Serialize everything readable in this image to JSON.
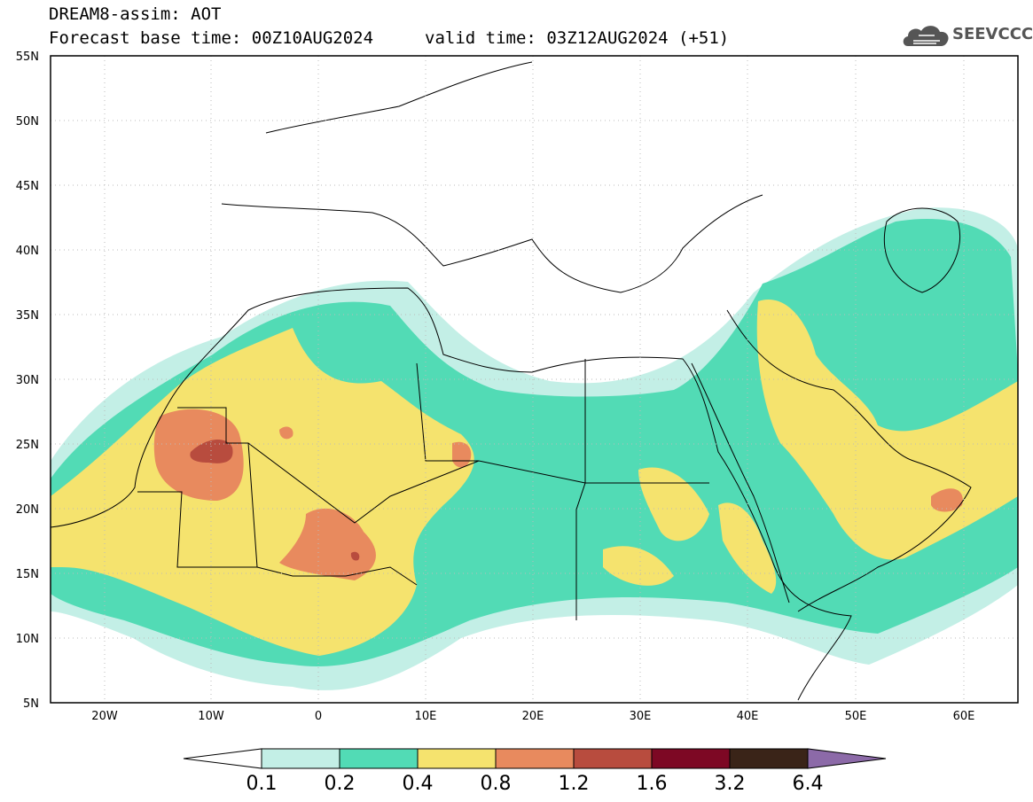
{
  "title": {
    "line1": "DREAM8-assim: AOT",
    "base_time": "Forecast base time: 00Z10AUG2024",
    "valid_time": "valid time: 03Z12AUG2024 (+51)"
  },
  "logo": {
    "text": "SEEVCCC",
    "icon": "cloud-icon"
  },
  "map": {
    "variable": "AOT",
    "region": "North Africa, Middle East, Mediterranean",
    "lon_range": [
      -25,
      65
    ],
    "lat_range": [
      5,
      55
    ],
    "lat_ticks": [
      "55N",
      "50N",
      "45N",
      "40N",
      "35N",
      "30N",
      "25N",
      "20N",
      "15N",
      "10N",
      "5N"
    ],
    "lon_ticks": [
      "20W",
      "10W",
      "0",
      "10E",
      "20E",
      "30E",
      "40E",
      "50E",
      "60E"
    ]
  },
  "legend": {
    "levels": [
      "0.1",
      "0.2",
      "0.4",
      "0.8",
      "1.2",
      "1.6",
      "3.2",
      "6.4"
    ],
    "colors": [
      "#ffffff",
      "#c3efe6",
      "#52dbb5",
      "#f5e36e",
      "#e88a5e",
      "#b84c3e",
      "#7d0824",
      "#3a2418",
      "#8c6aa8"
    ]
  }
}
